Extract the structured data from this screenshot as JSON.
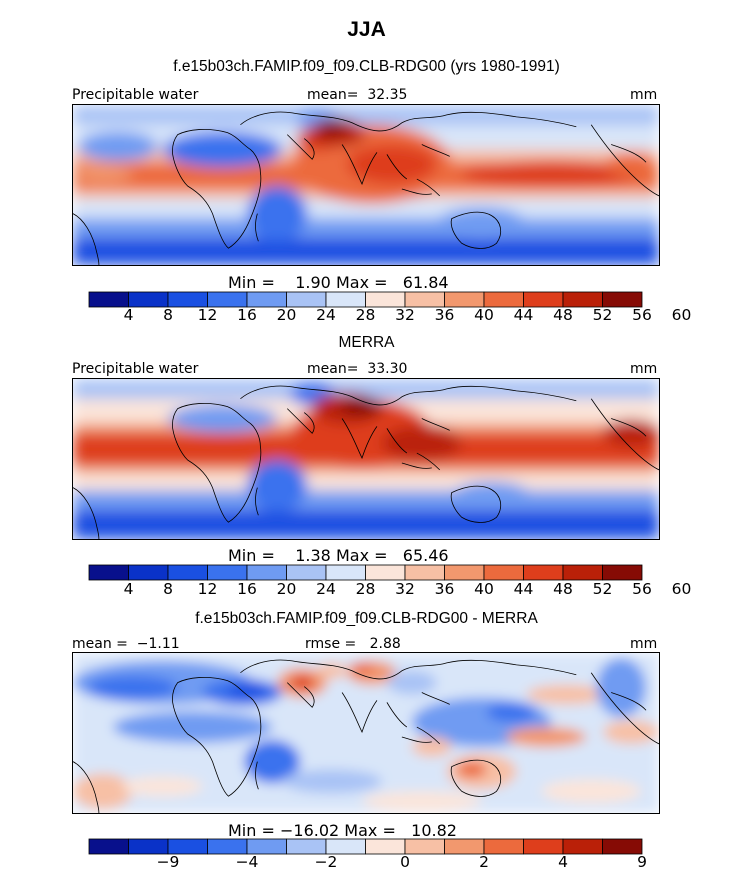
{
  "figure": {
    "season": "JJA"
  },
  "chart_data": [
    {
      "type": "heatmap",
      "title": "f.e15b03ch.FAMIP.f09_f09.CLB-RDG00 (yrs 1980-1991)",
      "variable": "Precipitable water",
      "units": "mm",
      "mean_label": "mean=",
      "mean": "32.35",
      "min_label": "Min =",
      "min": "1.90",
      "max_label": "Max =",
      "max": "61.84",
      "colorbar": {
        "colors": [
          "#08108c",
          "#0a32c8",
          "#1a50e2",
          "#3a72ee",
          "#6f9bf2",
          "#a9c3f5",
          "#d9e6f9",
          "#fbe5da",
          "#f7c0a5",
          "#f2986e",
          "#ec6a3d",
          "#de3e1c",
          "#ba2008",
          "#860b05"
        ],
        "tick_labels": [
          "4",
          "8",
          "12",
          "16",
          "20",
          "24",
          "28",
          "32",
          "36",
          "40",
          "44",
          "48",
          "52",
          "56",
          "60"
        ]
      }
    },
    {
      "type": "heatmap",
      "title": "MERRA",
      "variable": "Precipitable water",
      "units": "mm",
      "mean_label": "mean=",
      "mean": "33.30",
      "min_label": "Min =",
      "min": "1.38",
      "max_label": "Max =",
      "max": "65.46",
      "colorbar": {
        "colors": [
          "#08108c",
          "#0a32c8",
          "#1a50e2",
          "#3a72ee",
          "#6f9bf2",
          "#a9c3f5",
          "#d9e6f9",
          "#fbe5da",
          "#f7c0a5",
          "#f2986e",
          "#ec6a3d",
          "#de3e1c",
          "#ba2008",
          "#860b05"
        ],
        "tick_labels": [
          "4",
          "8",
          "12",
          "16",
          "20",
          "24",
          "28",
          "32",
          "36",
          "40",
          "44",
          "48",
          "52",
          "56",
          "60"
        ]
      }
    },
    {
      "type": "heatmap",
      "title": "f.e15b03ch.FAMIP.f09_f09.CLB-RDG00 - MERRA",
      "units": "mm",
      "mean_label": "mean =",
      "mean": "−1.11",
      "rmse_label": "rmse =",
      "rmse": "2.88",
      "min_label": "Min =",
      "min": "−16.02",
      "max_label": "Max =",
      "max": "10.82",
      "colorbar": {
        "colors": [
          "#08108c",
          "#0a32c8",
          "#1a50e2",
          "#3a72ee",
          "#6f9bf2",
          "#a9c3f5",
          "#d9e6f9",
          "#fbe5da",
          "#f7c0a5",
          "#f2986e",
          "#ec6a3d",
          "#de3e1c",
          "#ba2008",
          "#860b05"
        ],
        "tick_labels": [
          "",
          "−9",
          "",
          "−4",
          "",
          "−2",
          "",
          "0",
          "",
          "2",
          "",
          "4",
          "",
          "9",
          ""
        ]
      }
    }
  ]
}
